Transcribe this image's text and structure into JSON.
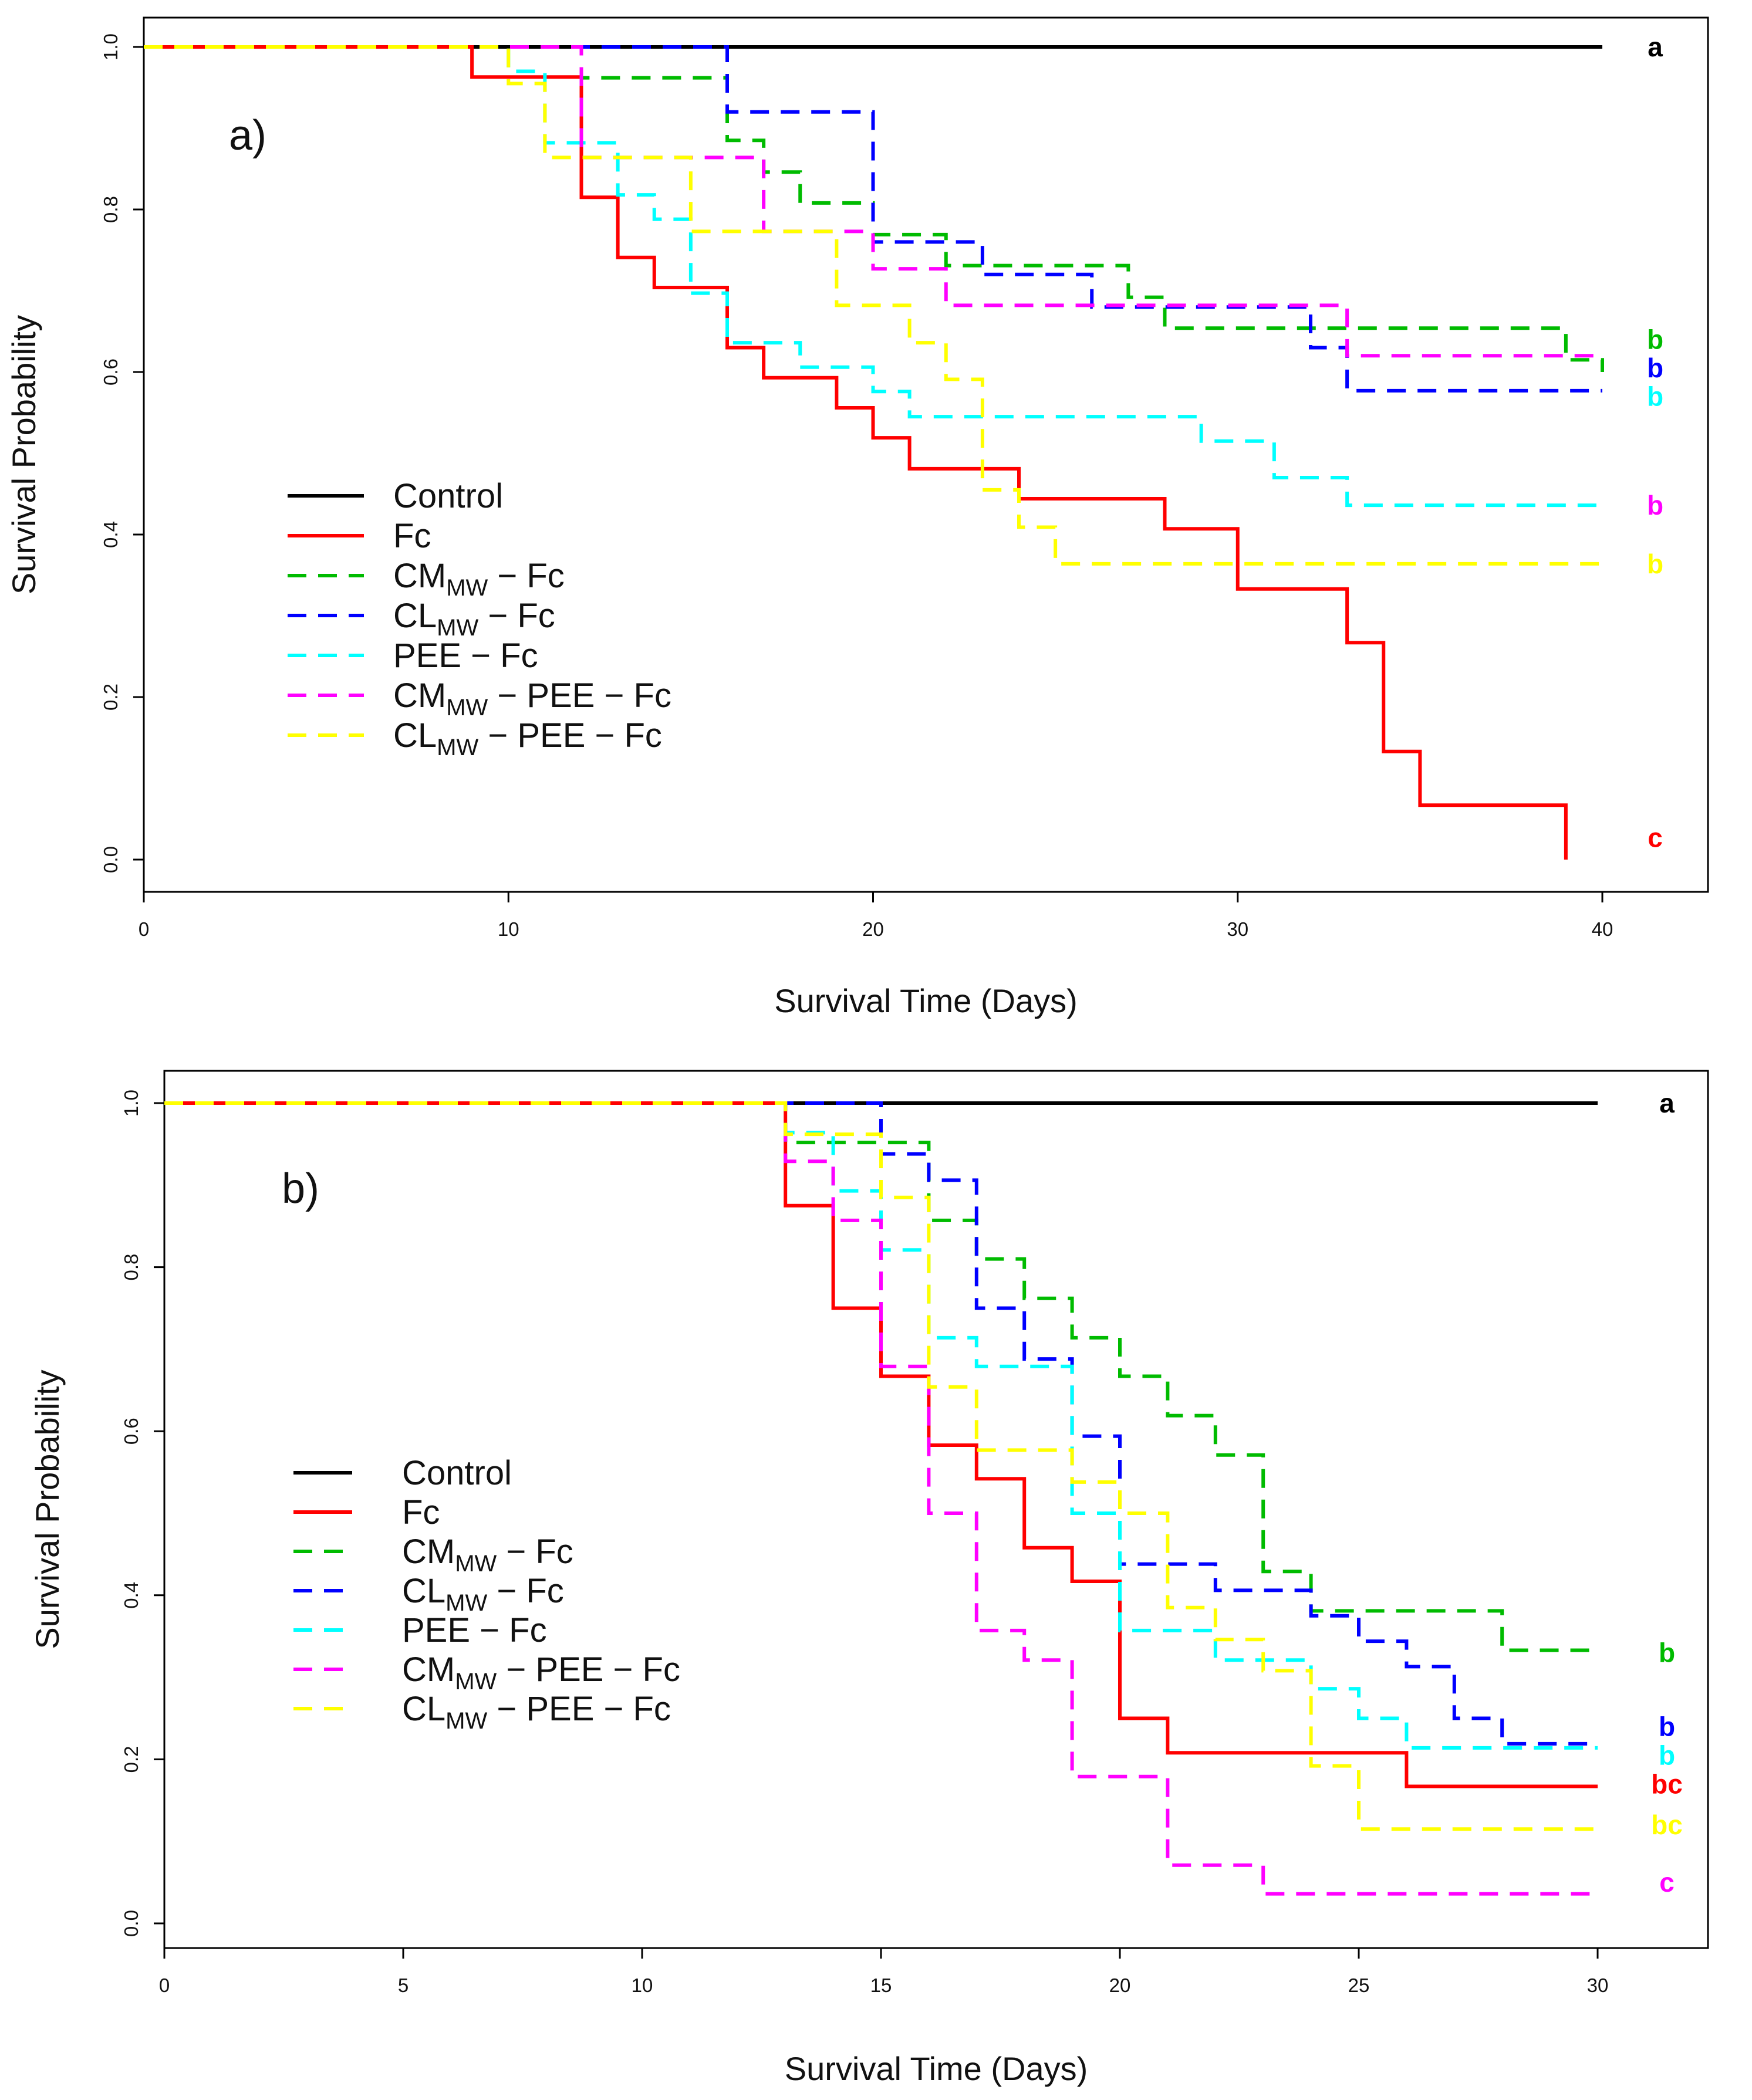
{
  "figure": {
    "description": "Kaplan-Meier survival curves, two panels"
  },
  "chart_data": [
    {
      "type": "line",
      "panel_label": "a)",
      "xlabel": "Survival Time (Days)",
      "ylabel": "Survival Probability",
      "xlim": [
        0,
        40
      ],
      "ylim": [
        0,
        1
      ],
      "xticks": [
        0,
        10,
        20,
        30,
        40
      ],
      "yticks": [
        0.0,
        0.2,
        0.4,
        0.6,
        0.8,
        1.0
      ],
      "grid": false,
      "legend_position": "center-left",
      "series": [
        {
          "name": "Control",
          "legend": {
            "main": "Control",
            "sub": "",
            "rest": ""
          },
          "color": "#000000",
          "dash": false,
          "sig": "a",
          "steps": [
            [
              0,
              1.0
            ],
            [
              40,
              1.0
            ]
          ]
        },
        {
          "name": "Fc",
          "legend": {
            "main": "Fc",
            "sub": "",
            "rest": ""
          },
          "color": "#ff0000",
          "dash": false,
          "sig": "c",
          "steps": [
            [
              0,
              1.0
            ],
            [
              9,
              0.963
            ],
            [
              12,
              0.815
            ],
            [
              13,
              0.741
            ],
            [
              14,
              0.704
            ],
            [
              16,
              0.63
            ],
            [
              17,
              0.593
            ],
            [
              19,
              0.556
            ],
            [
              20,
              0.519
            ],
            [
              21,
              0.481
            ],
            [
              24,
              0.444
            ],
            [
              28,
              0.407
            ],
            [
              30,
              0.333
            ],
            [
              33,
              0.267
            ],
            [
              34,
              0.133
            ],
            [
              35,
              0.067
            ],
            [
              39,
              0.0
            ]
          ]
        },
        {
          "name": "CMMW-Fc",
          "legend": {
            "main": "CM",
            "sub": "MW",
            "rest": " − Fc"
          },
          "color": "#00bb00",
          "dash": true,
          "sig": "b",
          "steps": [
            [
              0,
              1.0
            ],
            [
              12,
              0.962
            ],
            [
              16,
              0.885
            ],
            [
              17,
              0.846
            ],
            [
              18,
              0.808
            ],
            [
              20,
              0.769
            ],
            [
              22,
              0.731
            ],
            [
              27,
              0.692
            ],
            [
              28,
              0.654
            ],
            [
              39,
              0.615
            ],
            [
              40,
              0.6
            ]
          ]
        },
        {
          "name": "CLMW-Fc",
          "legend": {
            "main": "CL",
            "sub": "MW",
            "rest": " − Fc"
          },
          "color": "#0000ff",
          "dash": true,
          "sig": "b",
          "steps": [
            [
              0,
              1.0
            ],
            [
              16,
              0.92
            ],
            [
              20,
              0.76
            ],
            [
              23,
              0.72
            ],
            [
              26,
              0.68
            ],
            [
              32,
              0.63
            ],
            [
              33,
              0.577
            ],
            [
              40,
              0.577
            ]
          ]
        },
        {
          "name": "PEE-Fc",
          "legend": {
            "main": "PEE − Fc",
            "sub": "",
            "rest": ""
          },
          "color": "#00ffff",
          "dash": true,
          "sig": "b",
          "steps": [
            [
              0,
              1.0
            ],
            [
              10,
              0.97
            ],
            [
              11,
              0.882
            ],
            [
              13,
              0.818
            ],
            [
              14,
              0.788
            ],
            [
              15,
              0.697
            ],
            [
              16,
              0.636
            ],
            [
              18,
              0.606
            ],
            [
              20,
              0.576
            ],
            [
              21,
              0.545
            ],
            [
              29,
              0.515
            ],
            [
              31,
              0.47
            ],
            [
              33,
              0.436
            ],
            [
              40,
              0.436
            ]
          ]
        },
        {
          "name": "CMMW-PEE-Fc",
          "legend": {
            "main": "CM",
            "sub": "MW",
            "rest": " − PEE − Fc"
          },
          "color": "#ff00ff",
          "dash": true,
          "sig": "b",
          "steps": [
            [
              0,
              1.0
            ],
            [
              12,
              0.864
            ],
            [
              17,
              0.773
            ],
            [
              20,
              0.727
            ],
            [
              22,
              0.682
            ],
            [
              33,
              0.62
            ],
            [
              40,
              0.62
            ]
          ]
        },
        {
          "name": "CLMW-PEE-Fc",
          "legend": {
            "main": "CL",
            "sub": "MW",
            "rest": " − PEE − Fc"
          },
          "color": "#ffff00",
          "dash": true,
          "sig": "b",
          "steps": [
            [
              0,
              1.0
            ],
            [
              10,
              0.955
            ],
            [
              11,
              0.864
            ],
            [
              15,
              0.773
            ],
            [
              19,
              0.682
            ],
            [
              21,
              0.636
            ],
            [
              22,
              0.591
            ],
            [
              23,
              0.455
            ],
            [
              24,
              0.409
            ],
            [
              25,
              0.364
            ],
            [
              40,
              0.364
            ]
          ]
        }
      ],
      "sig_label_values": [
        1.0,
        0.027,
        0.64,
        0.605,
        0.57,
        0.436,
        0.364
      ]
    },
    {
      "type": "line",
      "panel_label": "b)",
      "xlabel": "Survival Time (Days)",
      "ylabel": "Survival Probability",
      "xlim": [
        0,
        30
      ],
      "ylim": [
        0,
        1
      ],
      "xticks": [
        0,
        5,
        10,
        15,
        20,
        25,
        30
      ],
      "yticks": [
        0.0,
        0.2,
        0.4,
        0.6,
        0.8,
        1.0
      ],
      "grid": false,
      "legend_position": "center-left",
      "series": [
        {
          "name": "Control",
          "legend": {
            "main": "Control",
            "sub": "",
            "rest": ""
          },
          "color": "#000000",
          "dash": false,
          "sig": "a",
          "steps": [
            [
              0,
              1.0
            ],
            [
              30,
              1.0
            ]
          ]
        },
        {
          "name": "Fc",
          "legend": {
            "main": "Fc",
            "sub": "",
            "rest": ""
          },
          "color": "#ff0000",
          "dash": false,
          "sig": "bc",
          "steps": [
            [
              0,
              1.0
            ],
            [
              13,
              0.875
            ],
            [
              14,
              0.75
            ],
            [
              15,
              0.667
            ],
            [
              16,
              0.583
            ],
            [
              17,
              0.542
            ],
            [
              18,
              0.458
            ],
            [
              19,
              0.417
            ],
            [
              20,
              0.25
            ],
            [
              21,
              0.208
            ],
            [
              26,
              0.167
            ],
            [
              30,
              0.167
            ]
          ]
        },
        {
          "name": "CMMW-Fc",
          "legend": {
            "main": "CM",
            "sub": "MW",
            "rest": " − Fc"
          },
          "color": "#00bb00",
          "dash": true,
          "sig": "b",
          "steps": [
            [
              0,
              1.0
            ],
            [
              13,
              0.952
            ],
            [
              16,
              0.857
            ],
            [
              17,
              0.81
            ],
            [
              18,
              0.762
            ],
            [
              19,
              0.714
            ],
            [
              20,
              0.667
            ],
            [
              21,
              0.619
            ],
            [
              22,
              0.571
            ],
            [
              23,
              0.429
            ],
            [
              24,
              0.381
            ],
            [
              28,
              0.333
            ],
            [
              30,
              0.333
            ]
          ]
        },
        {
          "name": "CLMW-Fc",
          "legend": {
            "main": "CL",
            "sub": "MW",
            "rest": " − Fc"
          },
          "color": "#0000ff",
          "dash": true,
          "sig": "b",
          "steps": [
            [
              0,
              1.0
            ],
            [
              15,
              0.938
            ],
            [
              16,
              0.906
            ],
            [
              17,
              0.75
            ],
            [
              18,
              0.688
            ],
            [
              19,
              0.594
            ],
            [
              20,
              0.438
            ],
            [
              22,
              0.406
            ],
            [
              24,
              0.375
            ],
            [
              25,
              0.344
            ],
            [
              26,
              0.313
            ],
            [
              27,
              0.25
            ],
            [
              28,
              0.219
            ],
            [
              30,
              0.219
            ]
          ]
        },
        {
          "name": "PEE-Fc",
          "legend": {
            "main": "PEE − Fc",
            "sub": "",
            "rest": ""
          },
          "color": "#00ffff",
          "dash": true,
          "sig": "b",
          "steps": [
            [
              0,
              1.0
            ],
            [
              13,
              0.964
            ],
            [
              14,
              0.893
            ],
            [
              15,
              0.821
            ],
            [
              16,
              0.714
            ],
            [
              17,
              0.679
            ],
            [
              19,
              0.5
            ],
            [
              20,
              0.357
            ],
            [
              22,
              0.321
            ],
            [
              24,
              0.286
            ],
            [
              25,
              0.25
            ],
            [
              26,
              0.214
            ],
            [
              30,
              0.214
            ]
          ]
        },
        {
          "name": "CMMW-PEE-Fc",
          "legend": {
            "main": "CM",
            "sub": "MW",
            "rest": " − PEE − Fc"
          },
          "color": "#ff00ff",
          "dash": true,
          "sig": "c",
          "steps": [
            [
              0,
              1.0
            ],
            [
              13,
              0.929
            ],
            [
              14,
              0.857
            ],
            [
              15,
              0.679
            ],
            [
              16,
              0.5
            ],
            [
              17,
              0.357
            ],
            [
              18,
              0.321
            ],
            [
              19,
              0.179
            ],
            [
              21,
              0.071
            ],
            [
              23,
              0.036
            ],
            [
              30,
              0.036
            ]
          ]
        },
        {
          "name": "CLMW-PEE-Fc",
          "legend": {
            "main": "CL",
            "sub": "MW",
            "rest": " − PEE − Fc"
          },
          "color": "#ffff00",
          "dash": true,
          "sig": "bc",
          "steps": [
            [
              0,
              1.0
            ],
            [
              13,
              0.962
            ],
            [
              15,
              0.885
            ],
            [
              16,
              0.654
            ],
            [
              17,
              0.577
            ],
            [
              19,
              0.538
            ],
            [
              20,
              0.5
            ],
            [
              21,
              0.385
            ],
            [
              22,
              0.346
            ],
            [
              23,
              0.308
            ],
            [
              24,
              0.192
            ],
            [
              25,
              0.115
            ],
            [
              30,
              0.115
            ]
          ]
        }
      ],
      "sig_label_values": [
        1.0,
        0.17,
        0.33,
        0.24,
        0.205,
        0.05,
        0.12
      ]
    }
  ]
}
